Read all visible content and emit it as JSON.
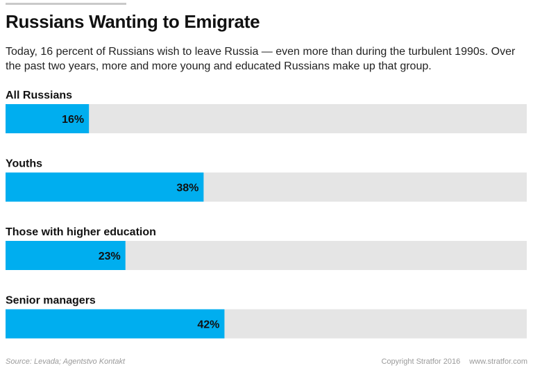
{
  "title": "Russians Wanting to Emigrate",
  "subtitle": "Today, 16 percent of Russians wish to leave Russia — even more than during the turbulent 1990s. Over the past two years, more and more young and educated Russians make up that group.",
  "footer": {
    "source": "Source: Levada; Agentstvo Kontakt",
    "copyright": "Copyright Stratfor 2016",
    "website": "www.stratfor.com"
  },
  "colors": {
    "bar": "#00aeef",
    "track": "#e5e5e5",
    "text": "#111111"
  },
  "chart_data": {
    "type": "bar",
    "orientation": "horizontal",
    "categories": [
      "All Russians",
      "Youths",
      "Those with higher education",
      "Senior managers"
    ],
    "values": [
      16,
      38,
      23,
      42
    ],
    "value_labels": [
      "16%",
      "38%",
      "23%",
      "42%"
    ],
    "xlim": [
      0,
      100
    ],
    "unit": "%",
    "grid": false
  }
}
